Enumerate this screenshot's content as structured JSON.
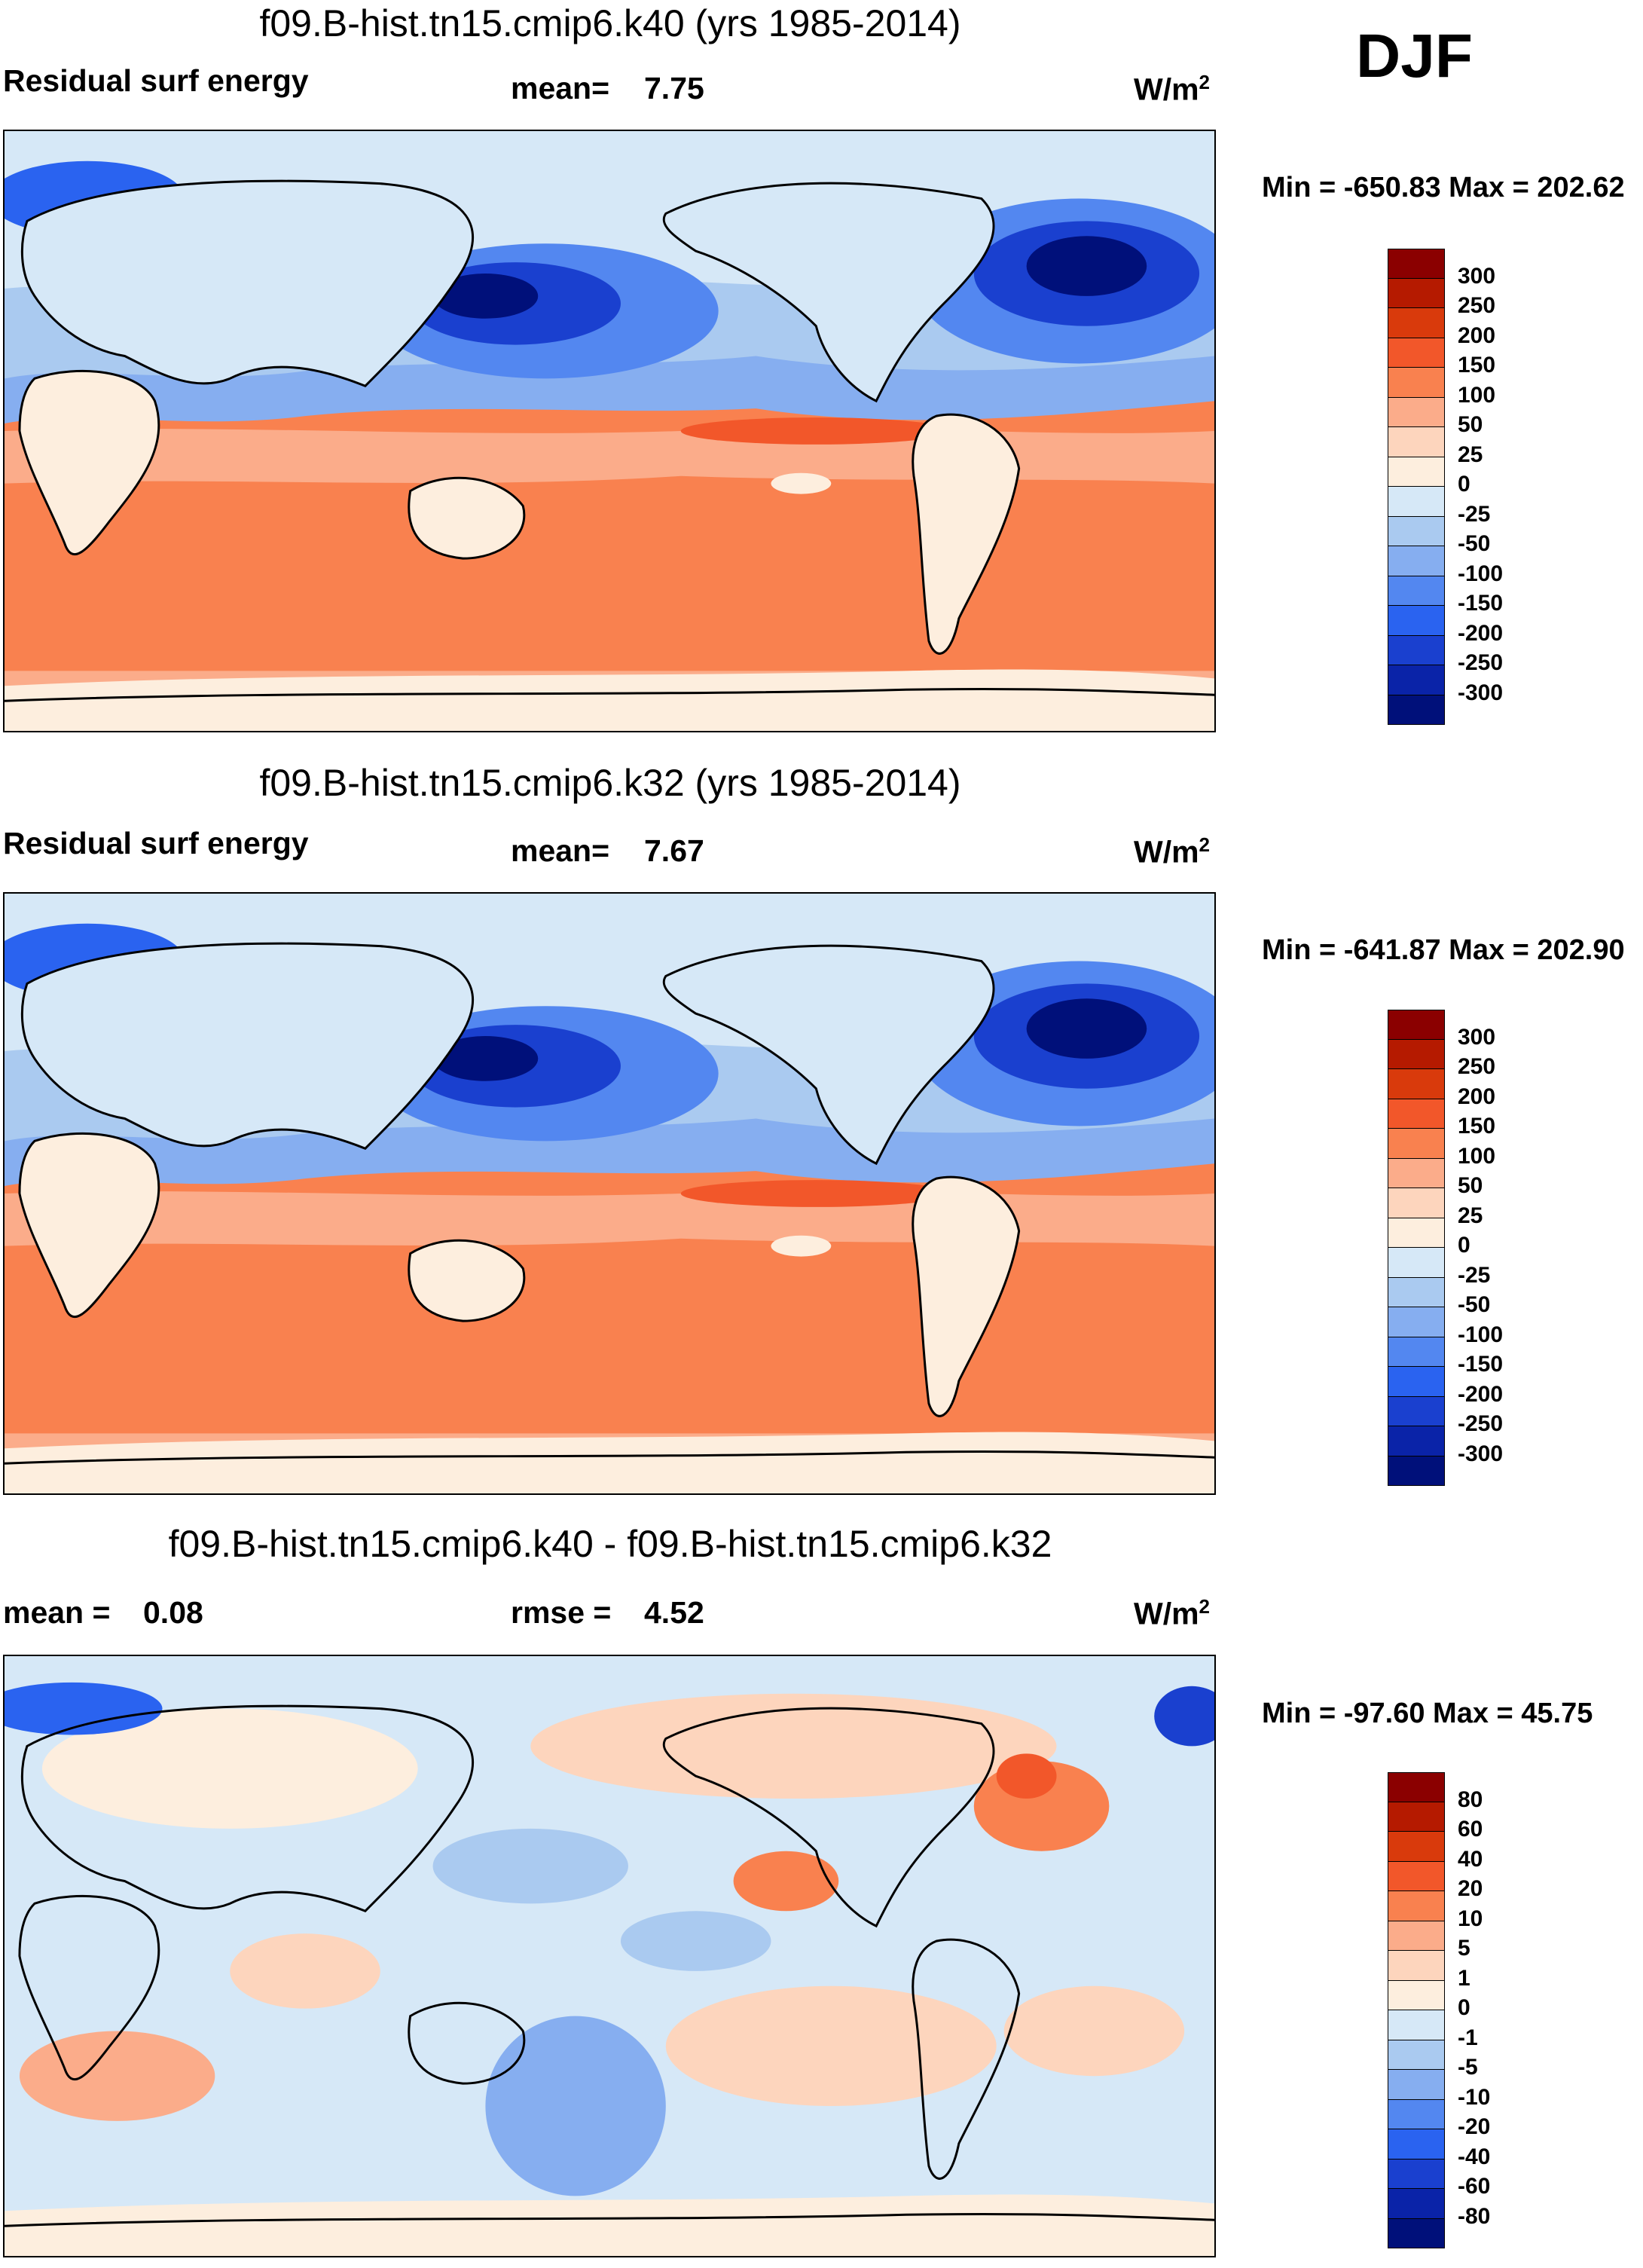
{
  "season": "DJF",
  "panels": [
    {
      "title": "f09.B-hist.tn15.cmip6.k40 (yrs 1985-2014)",
      "left_label": "Residual surf energy",
      "stat1_label": "mean=",
      "stat1_value": "7.75",
      "stat2_label": "",
      "stat2_value": "",
      "units": "W/m",
      "units_sup": "2",
      "min_max": "Min = -650.83 Max = 202.62",
      "colorbar": {
        "labels": [
          "300",
          "250",
          "200",
          "150",
          "100",
          "50",
          "25",
          "0",
          "-25",
          "-50",
          "-100",
          "-150",
          "-200",
          "-250",
          "-300"
        ],
        "colors": [
          "#8b0000",
          "#b51a00",
          "#d93a0c",
          "#f2572a",
          "#f9814f",
          "#fbac8a",
          "#fdd5bd",
          "#fdeede",
          "#d6e8f7",
          "#aacaf0",
          "#86aef0",
          "#5387f0",
          "#2a63f0",
          "#1a40cf",
          "#0a23a8",
          "#00107a"
        ]
      }
    },
    {
      "title": "f09.B-hist.tn15.cmip6.k32 (yrs 1985-2014)",
      "left_label": "Residual surf energy",
      "stat1_label": "mean=",
      "stat1_value": "7.67",
      "stat2_label": "",
      "stat2_value": "",
      "units": "W/m",
      "units_sup": "2",
      "min_max": "Min = -641.87 Max = 202.90",
      "colorbar": {
        "labels": [
          "300",
          "250",
          "200",
          "150",
          "100",
          "50",
          "25",
          "0",
          "-25",
          "-50",
          "-100",
          "-150",
          "-200",
          "-250",
          "-300"
        ],
        "colors": [
          "#8b0000",
          "#b51a00",
          "#d93a0c",
          "#f2572a",
          "#f9814f",
          "#fbac8a",
          "#fdd5bd",
          "#fdeede",
          "#d6e8f7",
          "#aacaf0",
          "#86aef0",
          "#5387f0",
          "#2a63f0",
          "#1a40cf",
          "#0a23a8",
          "#00107a"
        ]
      }
    },
    {
      "title": "f09.B-hist.tn15.cmip6.k40 - f09.B-hist.tn15.cmip6.k32",
      "left_label": "mean =",
      "left_value": "0.08",
      "stat1_label": "rmse =",
      "stat1_value": "4.52",
      "units": "W/m",
      "units_sup": "2",
      "min_max": "Min = -97.60 Max =  45.75",
      "colorbar": {
        "labels": [
          "80",
          "60",
          "40",
          "20",
          "10",
          "5",
          "1",
          "0",
          "-1",
          "-5",
          "-10",
          "-20",
          "-40",
          "-60",
          "-80"
        ],
        "colors": [
          "#8b0000",
          "#b51a00",
          "#d93a0c",
          "#f2572a",
          "#f9814f",
          "#fbac8a",
          "#fdd5bd",
          "#fdeede",
          "#d6e8f7",
          "#aacaf0",
          "#86aef0",
          "#5387f0",
          "#2a63f0",
          "#1a40cf",
          "#0a23a8",
          "#00107a"
        ]
      }
    }
  ]
}
